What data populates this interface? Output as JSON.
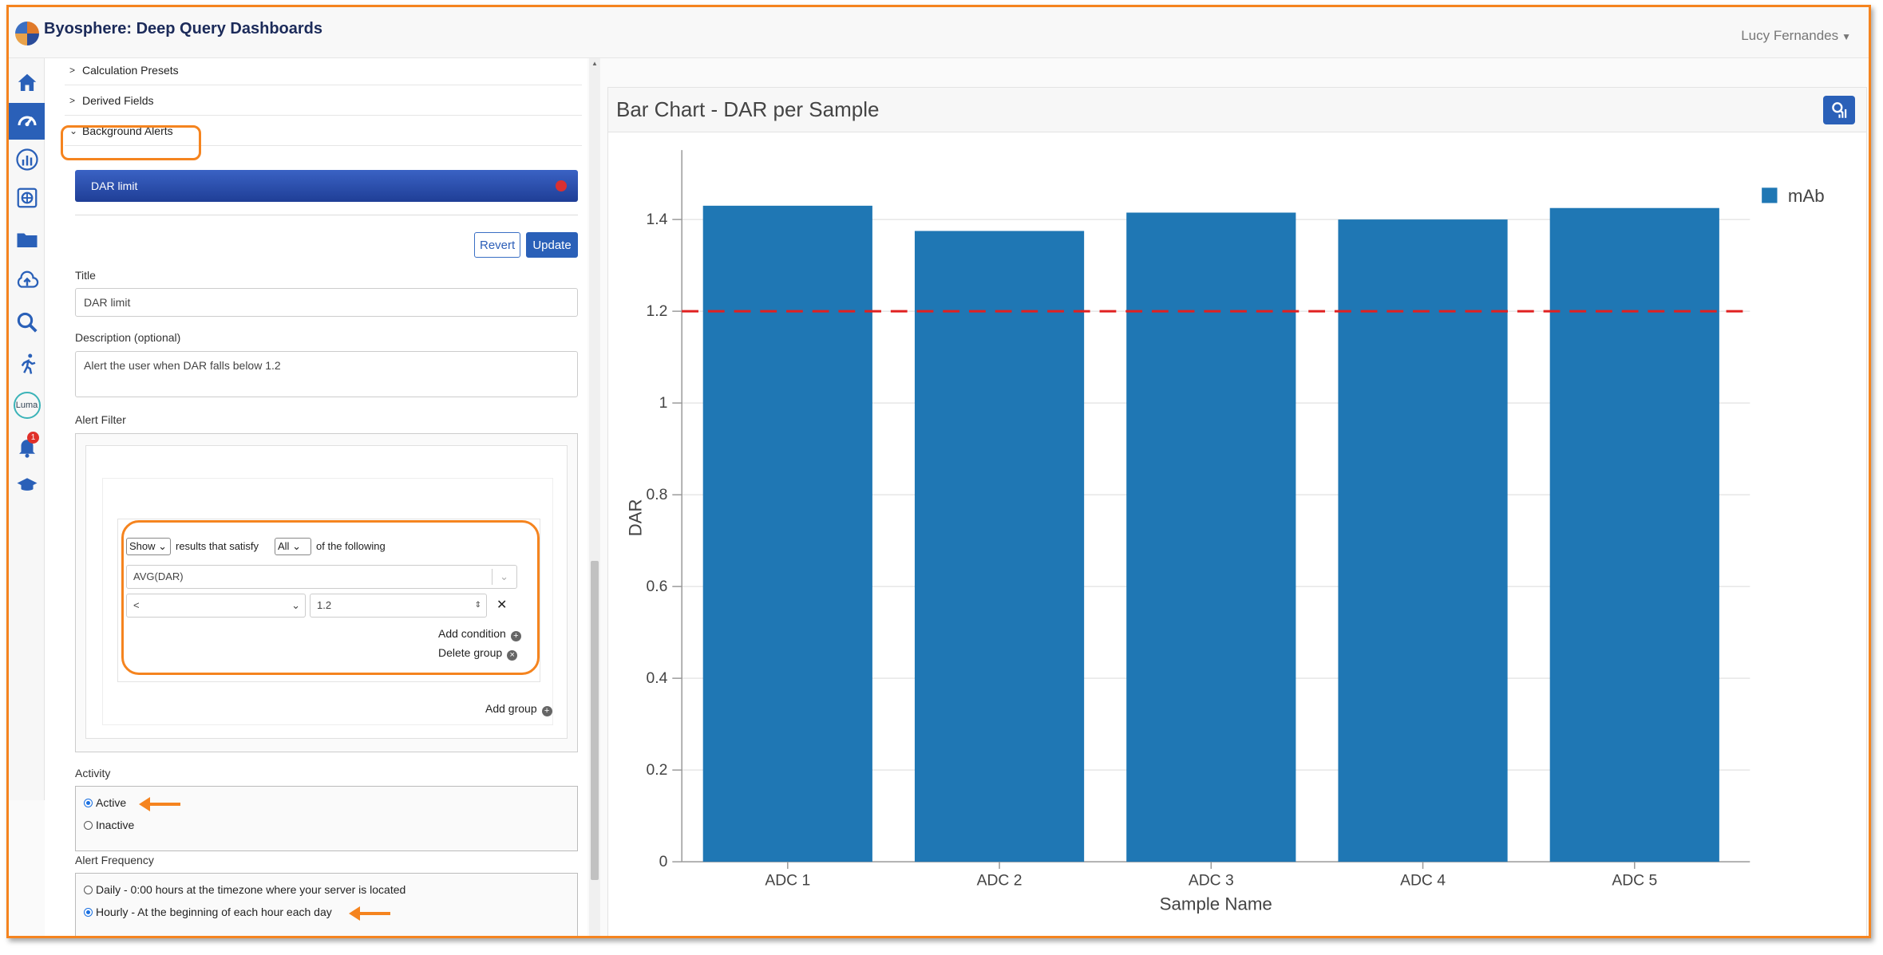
{
  "app": {
    "title": "Byosphere: Deep Query Dashboards",
    "user": "Lucy Fernandes"
  },
  "nav": {
    "items": [
      {
        "icon": "home-icon"
      },
      {
        "icon": "dashboard-gauge-icon"
      },
      {
        "icon": "analytics-icon"
      },
      {
        "icon": "database-icon"
      },
      {
        "icon": "folder-icon"
      },
      {
        "icon": "cloud-upload-icon"
      },
      {
        "icon": "search-icon"
      },
      {
        "icon": "runner-icon"
      },
      {
        "icon": "luma-icon",
        "label": "Luma"
      },
      {
        "icon": "bell-icon",
        "badge": "1"
      },
      {
        "icon": "graduation-cap-icon"
      }
    ]
  },
  "panel": {
    "sections": [
      "Calculation Presets",
      "Derived Fields",
      "Background Alerts"
    ],
    "alert_name": "DAR limit",
    "revert_label": "Revert",
    "update_label": "Update",
    "title_label": "Title",
    "title_value": "DAR limit",
    "description_label": "Description (optional)",
    "description_value": "Alert the user when DAR falls below 1.2",
    "filter_label": "Alert Filter",
    "filter": {
      "show_select": "Show",
      "satisfy_text": "results that satisfy",
      "all_select": "All",
      "following_text": "of the following",
      "field": "AVG(DAR)",
      "operator": "<",
      "value": "1.2",
      "add_condition": "Add condition",
      "delete_group": "Delete group",
      "add_group": "Add group"
    },
    "activity_label": "Activity",
    "activity_options": [
      "Active",
      "Inactive"
    ],
    "activity_selected": "Active",
    "frequency_label": "Alert Frequency",
    "frequency_options": [
      "Daily - 0:00 hours at the timezone where your server is located",
      "Hourly - At the beginning of each hour each day"
    ],
    "frequency_selected": "Hourly - At the beginning of each hour each day"
  },
  "colors": {
    "accent": "#2a60b8",
    "highlight": "#f5841f",
    "bar": "#1f77b4",
    "threshold": "#e02020"
  },
  "chart_data": {
    "type": "bar",
    "title": "Bar Chart - DAR per Sample",
    "categories": [
      "ADC 1",
      "ADC 2",
      "ADC 3",
      "ADC 4",
      "ADC 5"
    ],
    "series": [
      {
        "name": "mAb",
        "values": [
          1.43,
          1.375,
          1.415,
          1.4,
          1.425
        ]
      }
    ],
    "threshold": 1.2,
    "xlabel": "Sample Name",
    "ylabel": "DAR",
    "ylim": [
      0,
      1.5
    ],
    "yticks": [
      "0",
      "0.2",
      "0.4",
      "0.6",
      "0.8",
      "1",
      "1.2",
      "1.4"
    ],
    "grid": true,
    "legend_position": "top-right"
  }
}
